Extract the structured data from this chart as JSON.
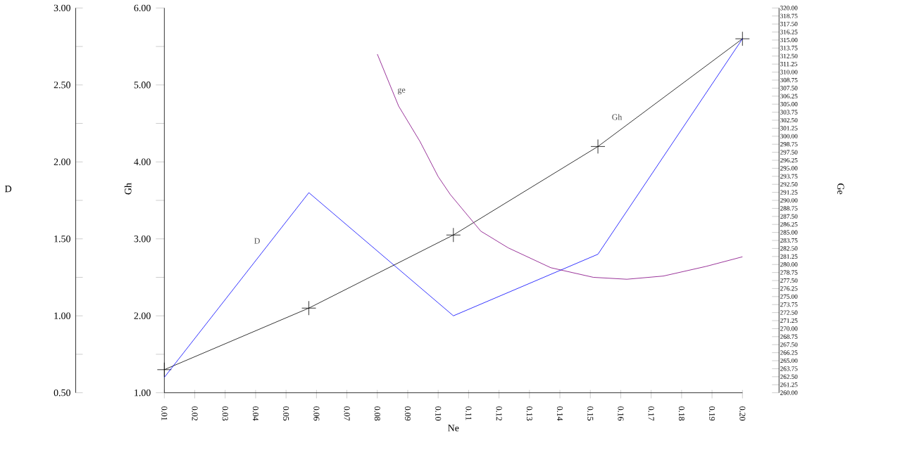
{
  "chart_data": {
    "type": "line",
    "xlabel": "Ne",
    "ylabel": "D",
    "y2label": "Ge",
    "y3label": "Gh",
    "xlim": [
      0.01,
      0.2
    ],
    "xticks": [
      {
        "value": 0.01,
        "label": "0.01"
      },
      {
        "value": 0.02,
        "label": "0.02"
      },
      {
        "value": 0.03,
        "label": "0.03"
      },
      {
        "value": 0.04,
        "label": "0.04"
      },
      {
        "value": 0.05,
        "label": "0.05"
      },
      {
        "value": 0.06,
        "label": "0.06"
      },
      {
        "value": 0.07,
        "label": "0.07"
      },
      {
        "value": 0.08,
        "label": "0.08"
      },
      {
        "value": 0.09,
        "label": "0.09"
      },
      {
        "value": 0.1,
        "label": "0.10"
      },
      {
        "value": 0.11,
        "label": "0.11"
      },
      {
        "value": 0.12,
        "label": "0.12"
      },
      {
        "value": 0.13,
        "label": "0.13"
      },
      {
        "value": 0.14,
        "label": "0.14"
      },
      {
        "value": 0.15,
        "label": "0.15"
      },
      {
        "value": 0.16,
        "label": "0.16"
      },
      {
        "value": 0.17,
        "label": "0.17"
      },
      {
        "value": 0.18,
        "label": "0.18"
      },
      {
        "value": 0.19,
        "label": "0.19"
      },
      {
        "value": 0.2,
        "label": "0.20"
      }
    ],
    "ylim": [
      0.5,
      3.0
    ],
    "yticks": [
      {
        "value": 0.5,
        "label": "0.50"
      },
      {
        "value": 0.75,
        "label": null
      },
      {
        "value": 1.0,
        "label": "1.00"
      },
      {
        "value": 1.25,
        "label": null
      },
      {
        "value": 1.5,
        "label": "1.50"
      },
      {
        "value": 1.75,
        "label": null
      },
      {
        "value": 2.0,
        "label": "2.00"
      },
      {
        "value": 2.25,
        "label": null
      },
      {
        "value": 2.5,
        "label": "2.50"
      },
      {
        "value": 2.75,
        "label": null
      },
      {
        "value": 3.0,
        "label": "3.00"
      }
    ],
    "y3lim": [
      1.0,
      6.0
    ],
    "y3ticks": [
      {
        "value": 1.0,
        "label": "1.00"
      },
      {
        "value": 1.5,
        "label": null
      },
      {
        "value": 2.0,
        "label": "2.00"
      },
      {
        "value": 2.5,
        "label": null
      },
      {
        "value": 3.0,
        "label": "3.00"
      },
      {
        "value": 3.5,
        "label": null
      },
      {
        "value": 4.0,
        "label": "4.00"
      },
      {
        "value": 4.5,
        "label": null
      },
      {
        "value": 5.0,
        "label": "5.00"
      },
      {
        "value": 5.5,
        "label": null
      },
      {
        "value": 6.0,
        "label": "6.00"
      }
    ],
    "y2lim": [
      260,
      320
    ],
    "y2ticks": [
      {
        "value": 260,
        "label": "260.00"
      },
      {
        "value": 261.25,
        "label": "261.25"
      },
      {
        "value": 262.5,
        "label": "262.50"
      },
      {
        "value": 263.75,
        "label": "263.75"
      },
      {
        "value": 265,
        "label": "265.00"
      },
      {
        "value": 266.25,
        "label": "266.25"
      },
      {
        "value": 267.5,
        "label": "267.50"
      },
      {
        "value": 268.75,
        "label": "268.75"
      },
      {
        "value": 270,
        "label": "270.00"
      },
      {
        "value": 271.25,
        "label": "271.25"
      },
      {
        "value": 272.5,
        "label": "272.50"
      },
      {
        "value": 273.75,
        "label": "273.75"
      },
      {
        "value": 275,
        "label": "275.00"
      },
      {
        "value": 276.25,
        "label": "276.25"
      },
      {
        "value": 277.5,
        "label": "277.50"
      },
      {
        "value": 278.75,
        "label": "278.75"
      },
      {
        "value": 280,
        "label": "280.00"
      },
      {
        "value": 281.25,
        "label": "281.25"
      },
      {
        "value": 282.5,
        "label": "282.50"
      },
      {
        "value": 283.75,
        "label": "283.75"
      },
      {
        "value": 285,
        "label": "285.00"
      },
      {
        "value": 286.25,
        "label": "286.25"
      },
      {
        "value": 287.5,
        "label": "287.50"
      },
      {
        "value": 288.75,
        "label": "288.75"
      },
      {
        "value": 290,
        "label": "290.00"
      },
      {
        "value": 291.25,
        "label": "291.25"
      },
      {
        "value": 292.5,
        "label": "292.50"
      },
      {
        "value": 293.75,
        "label": "293.75"
      },
      {
        "value": 295,
        "label": "295.00"
      },
      {
        "value": 296.25,
        "label": "296.25"
      },
      {
        "value": 297.5,
        "label": "297.50"
      },
      {
        "value": 298.75,
        "label": "298.75"
      },
      {
        "value": 300,
        "label": "300.00"
      },
      {
        "value": 301.25,
        "label": "301.25"
      },
      {
        "value": 302.5,
        "label": "302.50"
      },
      {
        "value": 303.75,
        "label": "303.75"
      },
      {
        "value": 305,
        "label": "305.00"
      },
      {
        "value": 306.25,
        "label": "306.25"
      },
      {
        "value": 307.5,
        "label": "307.50"
      },
      {
        "value": 308.75,
        "label": "308.75"
      },
      {
        "value": 310,
        "label": "310.00"
      },
      {
        "value": 311.25,
        "label": "311.25"
      },
      {
        "value": 312.5,
        "label": "312.50"
      },
      {
        "value": 313.75,
        "label": "313.75"
      },
      {
        "value": 315,
        "label": "315.00"
      },
      {
        "value": 316.25,
        "label": "316.25"
      },
      {
        "value": 317.5,
        "label": "317.50"
      },
      {
        "value": 318.75,
        "label": "318.75"
      },
      {
        "value": 320,
        "label": "320.00"
      }
    ],
    "series": [
      {
        "name": "D",
        "color": "#0000ff",
        "axis": "y",
        "x": [
          0.01,
          0.0575,
          0.105,
          0.1525,
          0.2
        ],
        "values": [
          0.6,
          1.8,
          1.0,
          1.4,
          2.8
        ]
      },
      {
        "name": "Gh",
        "color": "#000000",
        "axis": "y3",
        "marker": "cross",
        "x": [
          0.01,
          0.0575,
          0.105,
          0.1525,
          0.2
        ],
        "values": [
          1.3,
          2.1,
          3.05,
          4.2,
          5.6
        ]
      },
      {
        "name": "ge",
        "color": "#800080",
        "axis": "y2",
        "x": [
          0.08,
          0.087,
          0.094,
          0.1,
          0.104,
          0.114,
          0.123,
          0.137,
          0.151,
          0.162,
          0.174,
          0.188,
          0.2
        ],
        "values": [
          312.8,
          304.7,
          299.2,
          293.7,
          290.9,
          285.2,
          282.6,
          279.5,
          278.0,
          277.7,
          278.2,
          279.7,
          281.2
        ]
      }
    ]
  }
}
